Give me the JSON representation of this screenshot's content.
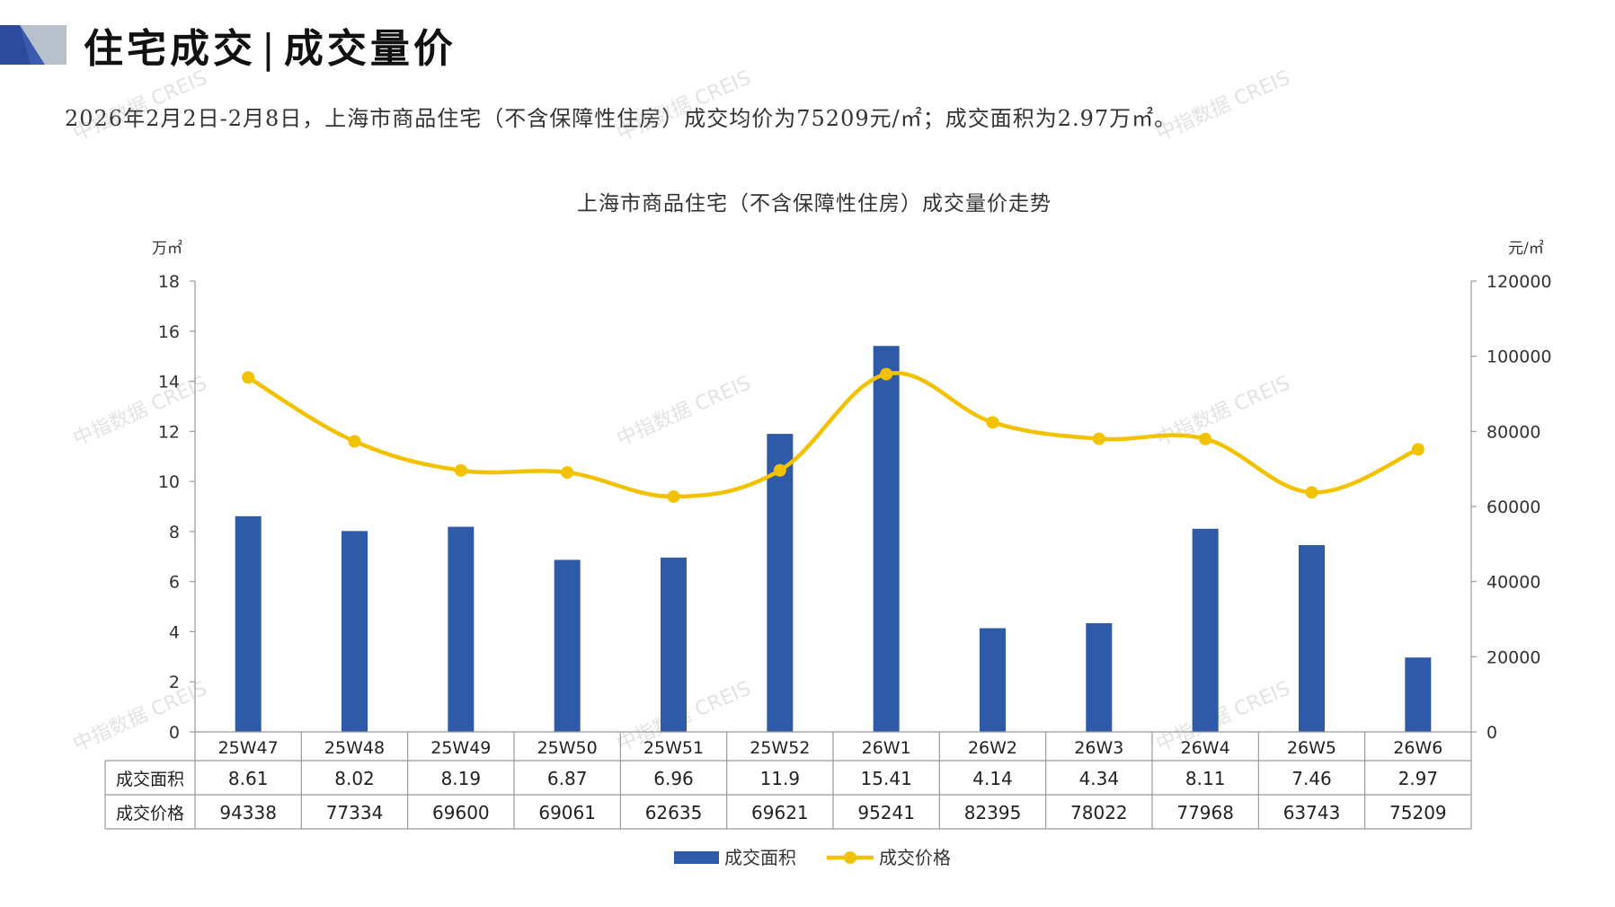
{
  "header": {
    "title_part1": "住宅成交",
    "title_part2": "成交量价"
  },
  "summary": "2026年2月2日-2月8日，上海市商品住宅（不含保障性住房）成交均价为75209元/㎡；成交面积为2.97万㎡。",
  "watermark_text": "中指数据 CREIS",
  "colors": {
    "bar": "#2E5AA8",
    "line": "#F2C200",
    "logo_dark": "#2E4A9A",
    "logo_light": "#B8C0CC"
  },
  "chart_data": {
    "type": "bar",
    "title": "上海市商品住宅（不含保障性住房）成交量价走势",
    "categories": [
      "25W47",
      "25W48",
      "25W49",
      "25W50",
      "25W51",
      "25W52",
      "26W1",
      "26W2",
      "26W3",
      "26W4",
      "26W5",
      "26W6"
    ],
    "series": [
      {
        "name": "成交面积",
        "type": "bar",
        "axis": "left",
        "values": [
          8.61,
          8.02,
          8.19,
          6.87,
          6.96,
          11.9,
          15.41,
          4.14,
          4.34,
          8.11,
          7.46,
          2.97
        ],
        "labels": [
          "8.61",
          "8.02",
          "8.19",
          "6.87",
          "6.96",
          "11.9",
          "15.41",
          "4.14",
          "4.34",
          "8.11",
          "7.46",
          "2.97"
        ]
      },
      {
        "name": "成交价格",
        "type": "line",
        "axis": "right",
        "values": [
          94338,
          77334,
          69600,
          69061,
          62635,
          69621,
          95241,
          82395,
          78022,
          77968,
          63743,
          75209
        ],
        "labels": [
          "94338",
          "77334",
          "69600",
          "69061",
          "62635",
          "69621",
          "95241",
          "82395",
          "78022",
          "77968",
          "63743",
          "75209"
        ]
      }
    ],
    "y_left": {
      "unit": "万㎡",
      "min": 0,
      "max": 18,
      "ticks": [
        "0",
        "2",
        "4",
        "6",
        "8",
        "10",
        "12",
        "14",
        "16",
        "18"
      ]
    },
    "y_right": {
      "unit": "元/㎡",
      "min": 0,
      "max": 120000,
      "ticks": [
        "0",
        "20000",
        "40000",
        "60000",
        "80000",
        "100000",
        "120000"
      ]
    },
    "legend_position": "bottom",
    "data_table": true,
    "grid": false
  }
}
